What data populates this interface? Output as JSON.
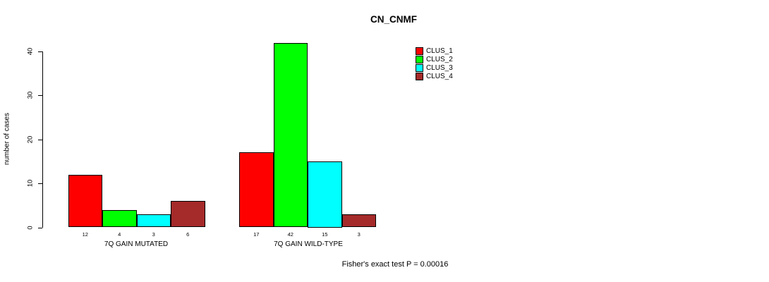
{
  "figure": {
    "title": "CN_CNMF",
    "footer": "Fisher's exact test P = 0.00016"
  },
  "chart_data": {
    "type": "bar",
    "title": "CN_CNMF",
    "xlabel": "",
    "ylabel": "number of cases",
    "categories": [
      "7Q GAIN MUTATED",
      "7Q GAIN WILD-TYPE"
    ],
    "series": [
      {
        "name": "CLUS_1",
        "color": "#ff0000",
        "values": [
          12,
          17
        ]
      },
      {
        "name": "CLUS_2",
        "color": "#00ff00",
        "values": [
          4,
          42
        ]
      },
      {
        "name": "CLUS_3",
        "color": "#00ffff",
        "values": [
          3,
          15
        ]
      },
      {
        "name": "CLUS_4",
        "color": "#a52a2a",
        "values": [
          6,
          3
        ]
      }
    ],
    "bar_value_labels": [
      [
        "12",
        "4",
        "3",
        "6"
      ],
      [
        "17",
        "42",
        "15",
        "3"
      ]
    ],
    "yticks": [
      "0",
      "10",
      "20",
      "30",
      "40"
    ],
    "ylim": [
      0,
      40
    ],
    "grid": false,
    "legend_position": "top-right",
    "annotation": "Fisher's exact test P = 0.00016"
  }
}
